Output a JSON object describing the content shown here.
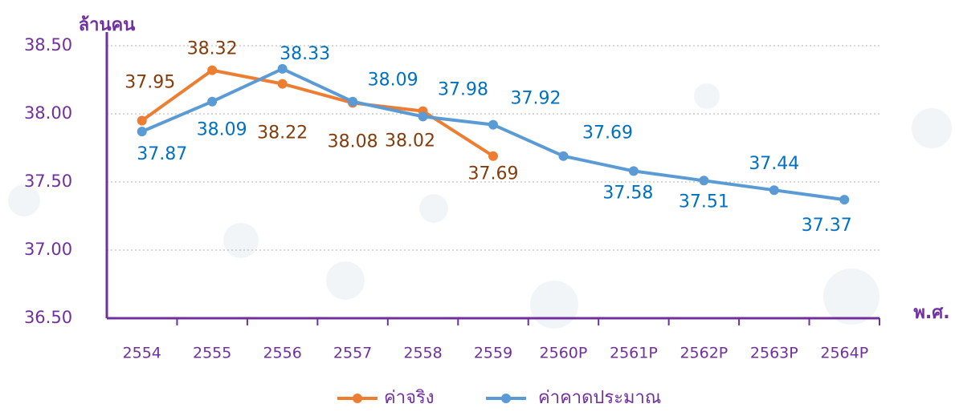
{
  "chart_data": {
    "type": "line",
    "y_label": "ล้านคน",
    "x_label": "พ.ศ.",
    "categories": [
      "2554",
      "2555",
      "2556",
      "2557",
      "2558",
      "2559",
      "2560P",
      "2561P",
      "2562P",
      "2563P",
      "2564P"
    ],
    "series": [
      {
        "name": "ค่าจริง",
        "color": "#ed7d31",
        "label_color": "#843c0c",
        "values": [
          37.95,
          38.32,
          38.22,
          38.08,
          38.02,
          37.69,
          null,
          null,
          null,
          null,
          null
        ]
      },
      {
        "name": "ค่าคาดประมาณ",
        "color": "#5b9bd5",
        "label_color": "#0070c0",
        "values": [
          37.87,
          38.09,
          38.33,
          38.09,
          37.98,
          37.92,
          37.69,
          37.58,
          37.51,
          37.44,
          37.37
        ]
      }
    ],
    "ylim": [
      36.5,
      38.5
    ],
    "yticks": [
      {
        "value": 36.5,
        "label": "36.50"
      },
      {
        "value": 37,
        "label": "37.00"
      },
      {
        "value": 37.5,
        "label": "37.50"
      },
      {
        "value": 38,
        "label": "38.00"
      },
      {
        "value": 38.5,
        "label": "38.50"
      }
    ],
    "grid": true,
    "axis_color": "#7030a0"
  }
}
